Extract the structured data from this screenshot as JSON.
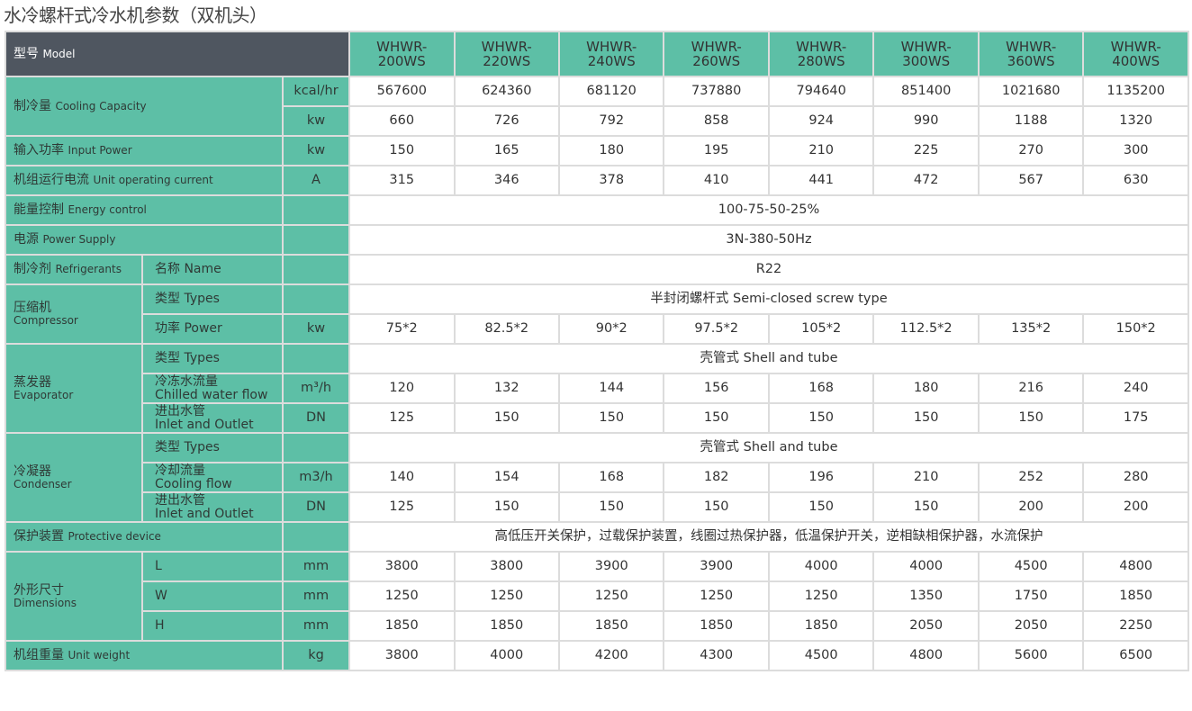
{
  "title": "水冷螺杆式冷水机参数（双机头）",
  "colors": {
    "teal": "#5dbfa6",
    "header_dark": "#4f5660"
  },
  "header": {
    "model_zh": "型号",
    "model_en": "Model",
    "models": [
      "WHWR-\n200WS",
      "WHWR-\n220WS",
      "WHWR-\n240WS",
      "WHWR-\n260WS",
      "WHWR-\n280WS",
      "WHWR-\n300WS",
      "WHWR-\n360WS",
      "WHWR-\n400WS"
    ]
  },
  "groups": [
    {
      "zh": "制冷量",
      "en": "Cooling Capacity",
      "rows": [
        {
          "unit": "kcal/hr",
          "values": [
            "567600",
            "624360",
            "681120",
            "737880",
            "794640",
            "851400",
            "1021680",
            "1135200"
          ]
        },
        {
          "unit": "kw",
          "values": [
            "660",
            "726",
            "792",
            "858",
            "924",
            "990",
            "1188",
            "1320"
          ]
        }
      ]
    },
    {
      "zh": "输入功率",
      "en": "Input Power",
      "rows": [
        {
          "unit": "kw",
          "values": [
            "150",
            "165",
            "180",
            "195",
            "210",
            "225",
            "270",
            "300"
          ]
        }
      ]
    },
    {
      "zh": "机组运行电流",
      "en": "Unit operating current",
      "rows": [
        {
          "unit": "A",
          "values": [
            "315",
            "346",
            "378",
            "410",
            "441",
            "472",
            "567",
            "630"
          ]
        }
      ]
    },
    {
      "zh": "能量控制",
      "en": "Energy control",
      "rows": [
        {
          "unit": "",
          "span": "100-75-50-25%"
        }
      ]
    },
    {
      "zh": "电源",
      "en": "Power Supply",
      "rows": [
        {
          "unit": "",
          "span": "3N-380-50Hz"
        }
      ]
    },
    {
      "zh": "制冷剂",
      "en": "Refrigerants",
      "sub_col": true,
      "rows": [
        {
          "sub": "名称 Name",
          "unit": "",
          "span": "R22"
        }
      ]
    },
    {
      "zh": "压缩机",
      "en": "Compressor",
      "sub_col": true,
      "rows": [
        {
          "sub": "类型 Types",
          "unit": "",
          "span": "半封闭螺杆式 Semi-closed screw type"
        },
        {
          "sub": "功率 Power",
          "unit": "kw",
          "values": [
            "75*2",
            "82.5*2",
            "90*2",
            "97.5*2",
            "105*2",
            "112.5*2",
            "135*2",
            "150*2"
          ]
        }
      ]
    },
    {
      "zh": "蒸发器",
      "en": "Evaporator",
      "sub_col": true,
      "rows": [
        {
          "sub": "类型 Types",
          "unit": "",
          "span": "壳管式 Shell and tube"
        },
        {
          "sub": "冷冻水流量\nChilled water flow",
          "unit": "m³/h",
          "values": [
            "120",
            "132",
            "144",
            "156",
            "168",
            "180",
            "216",
            "240"
          ]
        },
        {
          "sub": "进出水管\nInlet and Outlet",
          "unit": "DN",
          "values": [
            "125",
            "150",
            "150",
            "150",
            "150",
            "150",
            "150",
            "175"
          ]
        }
      ]
    },
    {
      "zh": "冷凝器",
      "en": "Condenser",
      "sub_col": true,
      "rows": [
        {
          "sub": "类型 Types",
          "unit": "",
          "span": "壳管式 Shell and tube"
        },
        {
          "sub": "冷却流量\nCooling flow",
          "unit": "m3/h",
          "values": [
            "140",
            "154",
            "168",
            "182",
            "196",
            "210",
            "252",
            "280"
          ]
        },
        {
          "sub": "进出水管\nInlet and Outlet",
          "unit": "DN",
          "values": [
            "125",
            "150",
            "150",
            "150",
            "150",
            "150",
            "200",
            "200"
          ]
        }
      ]
    },
    {
      "zh": "保护装置",
      "en": "Protective device",
      "rows": [
        {
          "unit": "",
          "span": "高低压开关保护，过载保护装置，线圈过热保护器，低温保护开关，逆相缺相保护器，水流保护"
        }
      ]
    },
    {
      "zh": "外形尺寸",
      "en": "Dimensions",
      "sub_col": true,
      "rows": [
        {
          "sub": "L",
          "unit": "mm",
          "values": [
            "3800",
            "3800",
            "3900",
            "3900",
            "4000",
            "4000",
            "4500",
            "4800"
          ]
        },
        {
          "sub": "W",
          "unit": "mm",
          "values": [
            "1250",
            "1250",
            "1250",
            "1250",
            "1250",
            "1350",
            "1750",
            "1850"
          ]
        },
        {
          "sub": "H",
          "unit": "mm",
          "values": [
            "1850",
            "1850",
            "1850",
            "1850",
            "1850",
            "2050",
            "2050",
            "2250"
          ]
        }
      ]
    },
    {
      "zh": "机组重量",
      "en": "Unit weight",
      "rows": [
        {
          "unit": "kg",
          "values": [
            "3800",
            "4000",
            "4200",
            "4300",
            "4500",
            "4800",
            "5600",
            "6500"
          ]
        }
      ]
    }
  ]
}
